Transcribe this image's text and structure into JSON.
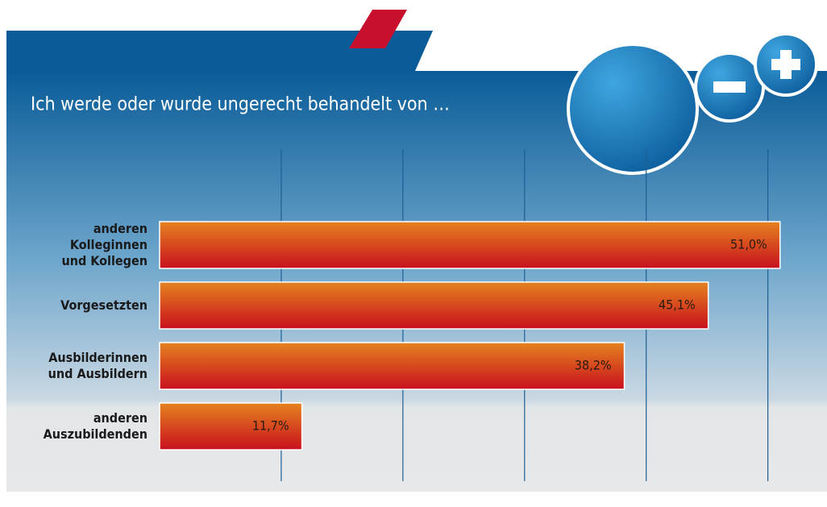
{
  "chart_data": {
    "type": "bar",
    "orientation": "horizontal",
    "title": "Ich werde oder wurde ungerecht behandelt von …",
    "categories": [
      "anderen\nKolleginnen\nund Kollegen",
      "Vorgesetzten",
      "Ausbilderinnen\nund Ausbildern",
      "anderen\nAuszubildenden"
    ],
    "values": [
      51.0,
      45.1,
      38.2,
      11.7
    ],
    "value_labels": [
      "51,0%",
      "45,1%",
      "38,2%",
      "11,7%"
    ],
    "xlim": [
      0,
      54
    ],
    "xticks": [
      10,
      20,
      30,
      40,
      50
    ],
    "grid": true
  }
}
